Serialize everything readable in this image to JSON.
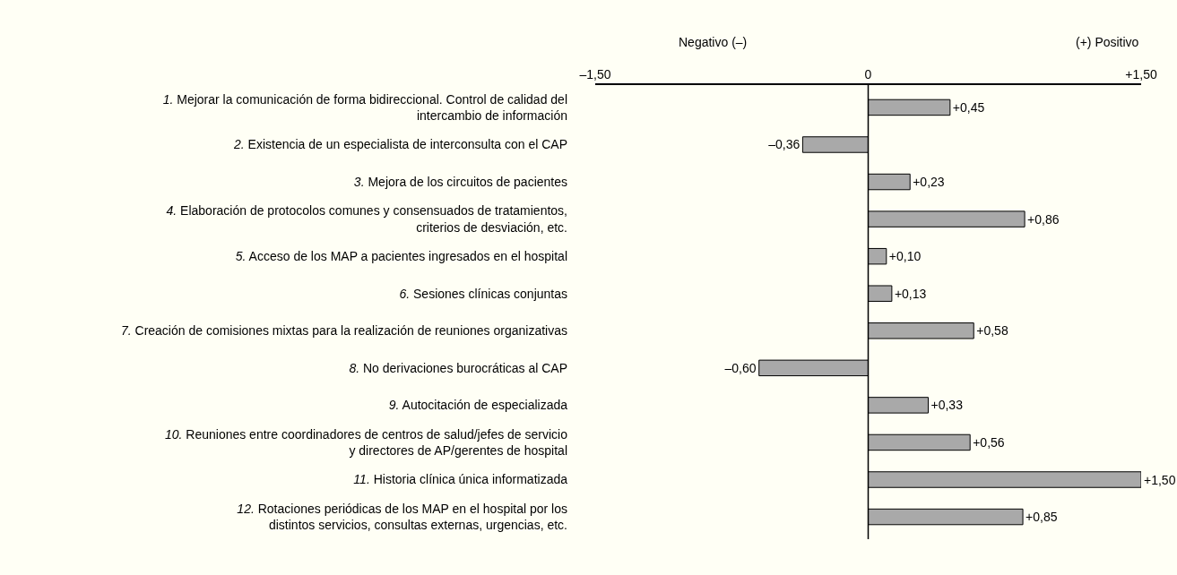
{
  "chart_data": {
    "type": "bar",
    "orientation": "horizontal",
    "categories": [
      "1. Mejorar la comunicación de forma bidireccional. Control de calidad del\nintercambio de información",
      "2. Existencia de un especialista de interconsulta con el CAP",
      "3. Mejora de los circuitos de pacientes",
      "4. Elaboración de protocolos comunes y consensuados de tratamientos,\ncriterios de desviación, etc.",
      "5. Acceso de los MAP a pacientes ingresados en el hospital",
      "6. Sesiones clínicas conjuntas",
      "7. Creación de comisiones mixtas para la realización de reuniones organizativas",
      "8. No derivaciones burocráticas al CAP",
      "9. Autocitación de especializada",
      "10. Reuniones entre coordinadores de centros de salud/jefes de servicio\ny directores de AP/gerentes de hospital",
      "11. Historia clínica única informatizada",
      "12. Rotaciones periódicas de los MAP en el hospital por los\ndistintos servicios, consultas externas, urgencias, etc."
    ],
    "values": [
      0.45,
      -0.36,
      0.23,
      0.86,
      0.1,
      0.13,
      0.58,
      -0.6,
      0.33,
      0.56,
      1.5,
      0.85
    ],
    "value_labels": [
      "+0,45",
      "–0,36",
      "+0,23",
      "+0,86",
      "+0,10",
      "+0,13",
      "+0,58",
      "–0,60",
      "+0,33",
      "+0,56",
      "+1,50",
      "+0,85"
    ],
    "color": "#a9a9a9",
    "xlim": [
      -1.5,
      1.5
    ],
    "xticks": [
      {
        "value": -1.5,
        "label": "–1,50"
      },
      0,
      {
        "value": 1.5,
        "label": "+1,50"
      }
    ],
    "annotations": [
      "Negativo (–)",
      "(+) Positivo"
    ],
    "ref_lines": [
      {
        "axis": "x",
        "value": 0,
        "color": "#000000"
      }
    ],
    "grid": false,
    "legend": false
  }
}
